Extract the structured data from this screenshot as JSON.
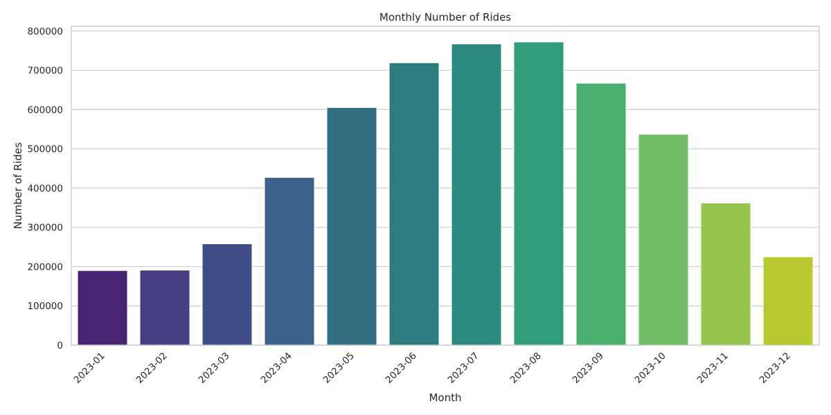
{
  "chart_data": {
    "type": "bar",
    "title": "Monthly Number of Rides",
    "xlabel": "Month",
    "ylabel": "Number of Rides",
    "categories": [
      "2023-01",
      "2023-02",
      "2023-03",
      "2023-04",
      "2023-05",
      "2023-06",
      "2023-07",
      "2023-08",
      "2023-09",
      "2023-10",
      "2023-11",
      "2023-12"
    ],
    "values": [
      190000,
      191000,
      258000,
      427000,
      605000,
      719000,
      767000,
      772000,
      667000,
      537000,
      362000,
      225000
    ],
    "ylim": [
      0,
      812000
    ],
    "yticks": [
      0,
      100000,
      200000,
      300000,
      400000,
      500000,
      600000,
      700000,
      800000
    ],
    "grid": true,
    "colors": [
      "#482475",
      "#463c81",
      "#414d89",
      "#3d618b",
      "#336f83",
      "#2e7c80",
      "#2b8b7c",
      "#319c79",
      "#4baf6f",
      "#71be67",
      "#95c54d",
      "#b8c831"
    ]
  }
}
